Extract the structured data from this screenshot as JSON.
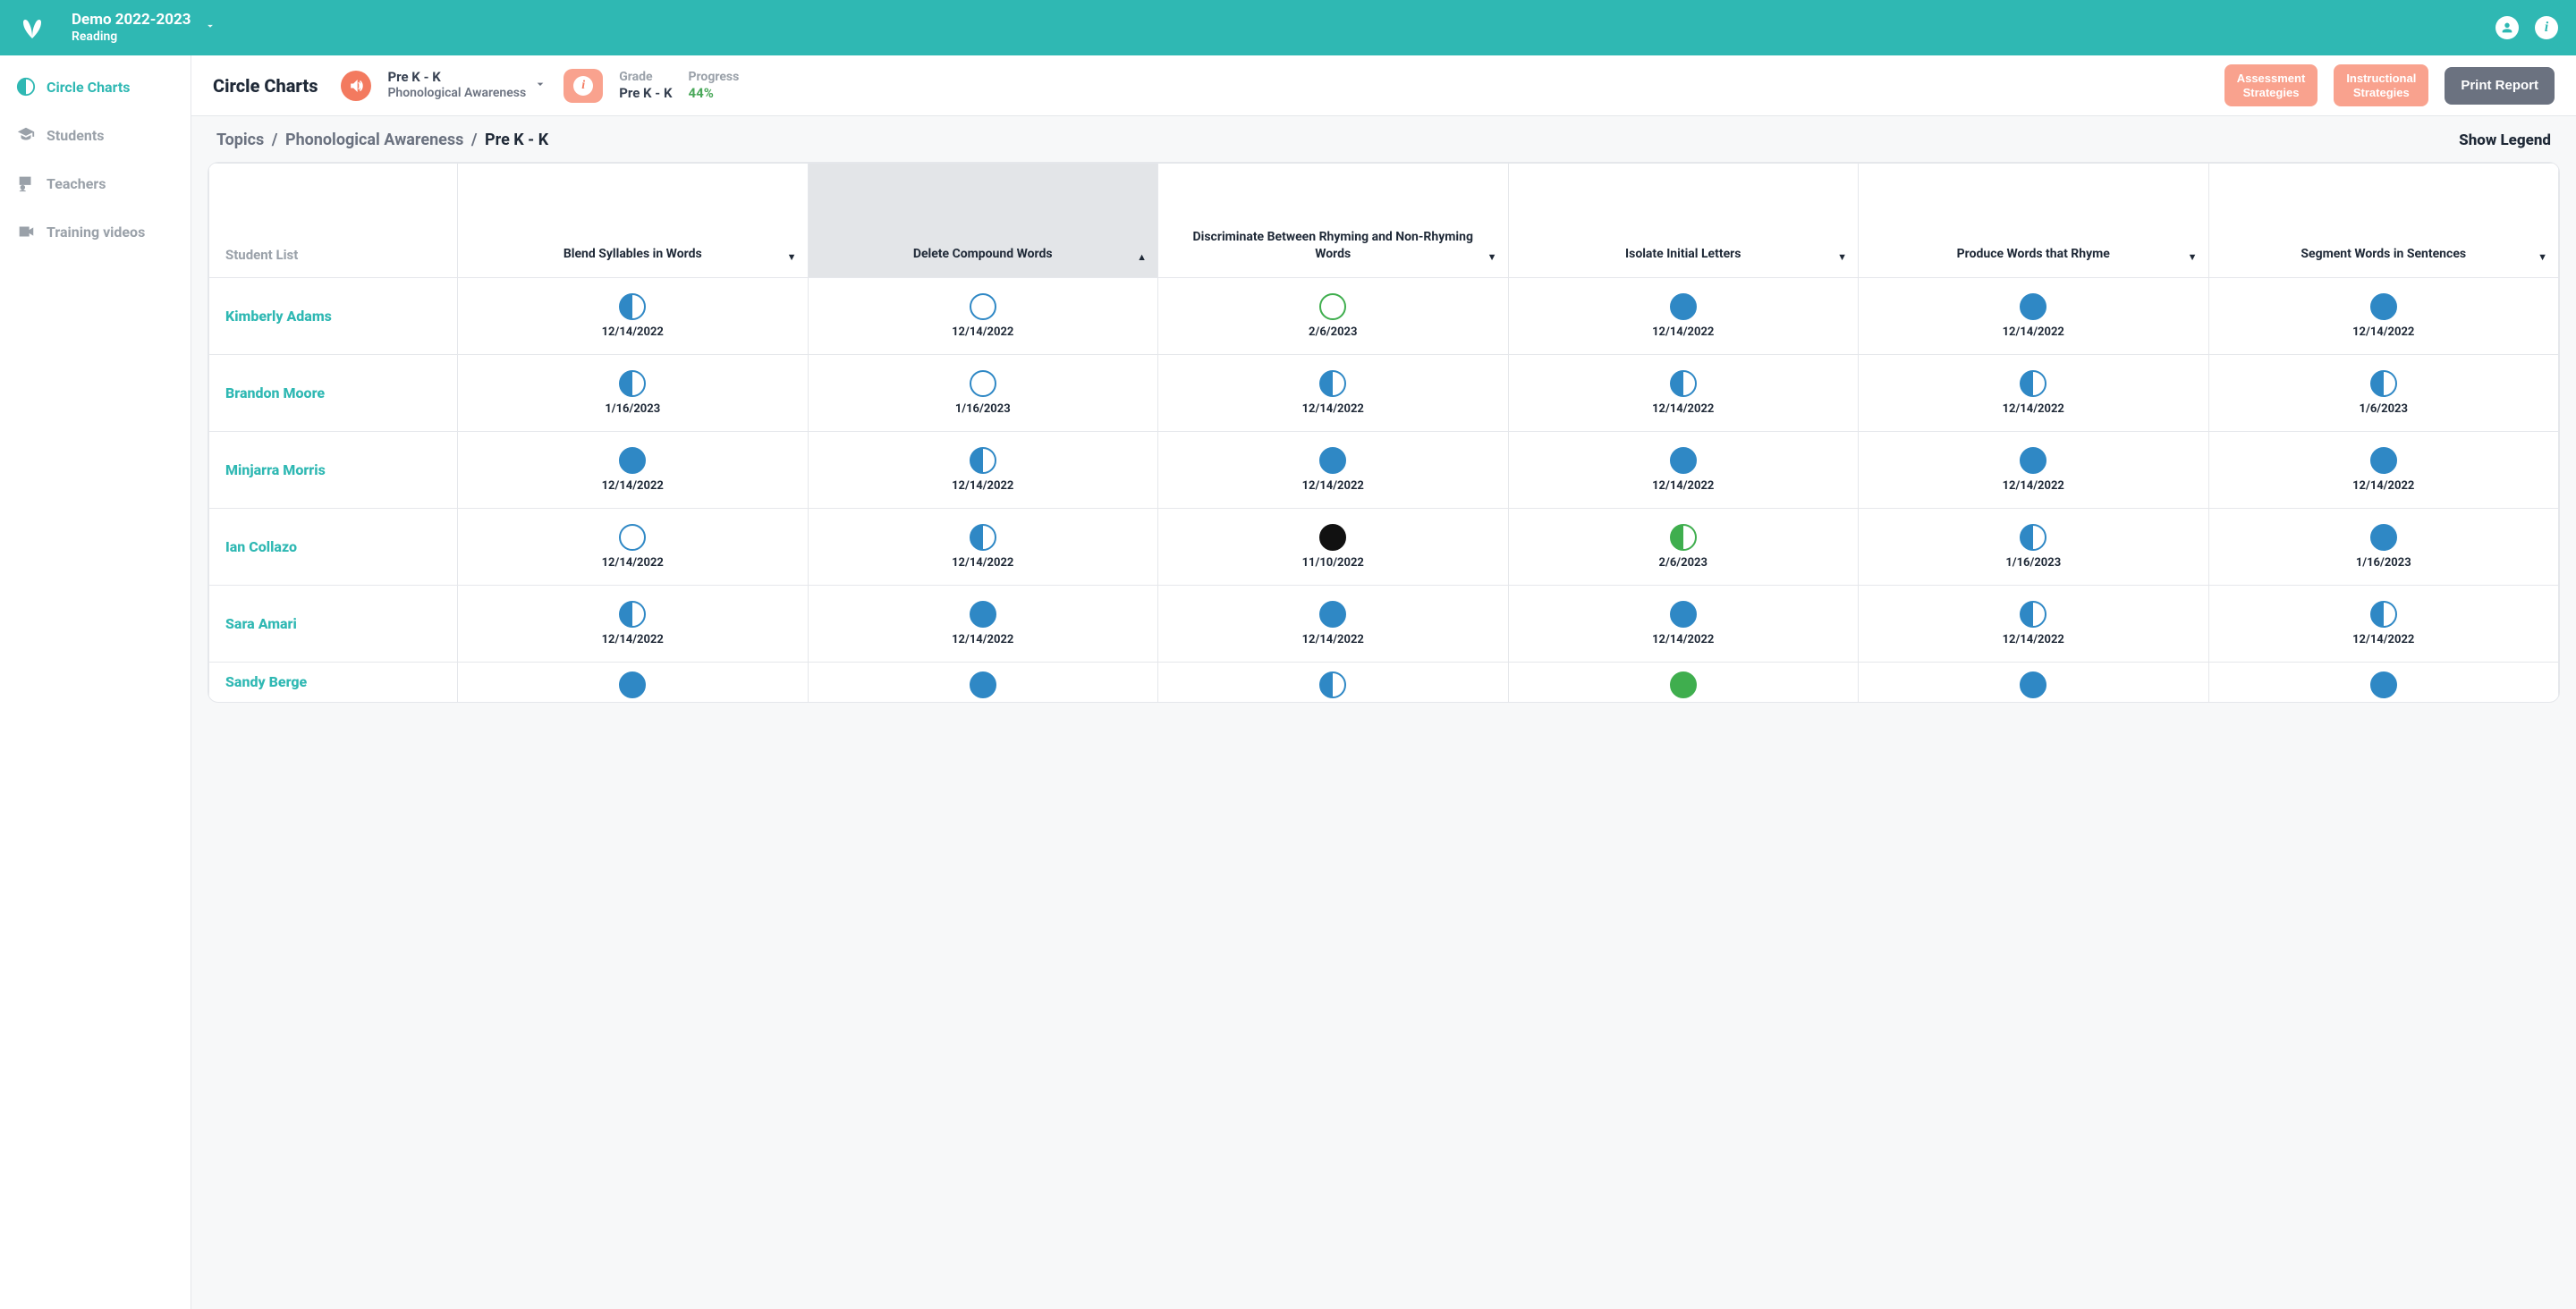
{
  "topbar": {
    "term_title": "Demo 2022-2023",
    "term_subject": "Reading"
  },
  "sidebar": {
    "items": [
      {
        "label": "Circle Charts",
        "name": "sidebar-item-circle-charts",
        "active": true
      },
      {
        "label": "Students",
        "name": "sidebar-item-students",
        "active": false
      },
      {
        "label": "Teachers",
        "name": "sidebar-item-teachers",
        "active": false
      },
      {
        "label": "Training videos",
        "name": "sidebar-item-training-videos",
        "active": false
      }
    ]
  },
  "toolbar": {
    "page_title": "Circle Charts",
    "selector_line1": "Pre K - K",
    "selector_line2": "Phonological Awareness",
    "grade_label": "Grade",
    "grade_value": "Pre K - K",
    "progress_label": "Progress",
    "progress_value": "44%",
    "btn_assessment": "Assessment\nStrategies",
    "btn_instructional": "Instructional\nStrategies",
    "btn_print": "Print Report"
  },
  "breadcrumbs": {
    "a": "Topics",
    "b": "Phonological Awareness",
    "c": "Pre K - K",
    "show_legend": "Show Legend"
  },
  "table": {
    "student_list_header": "Student List",
    "columns": [
      {
        "label": "Blend Syllables in Words",
        "sort": "down"
      },
      {
        "label": "Delete Compound Words",
        "sort": "up",
        "sorted": true
      },
      {
        "label": "Discriminate Between Rhyming and Non-Rhyming Words",
        "sort": "down"
      },
      {
        "label": "Isolate Initial Letters",
        "sort": "down"
      },
      {
        "label": "Produce Words that Rhyme",
        "sort": "down"
      },
      {
        "label": "Segment Words in Sentences",
        "sort": "down"
      }
    ],
    "rows": [
      {
        "name": "Kimberly Adams",
        "cells": [
          {
            "state": "half-blue",
            "date": "12/14/2022"
          },
          {
            "state": "open-blue",
            "date": "12/14/2022"
          },
          {
            "state": "open-green",
            "date": "2/6/2023"
          },
          {
            "state": "full-blue",
            "date": "12/14/2022"
          },
          {
            "state": "full-blue",
            "date": "12/14/2022"
          },
          {
            "state": "full-blue",
            "date": "12/14/2022"
          }
        ]
      },
      {
        "name": "Brandon Moore",
        "cells": [
          {
            "state": "half-blue",
            "date": "1/16/2023"
          },
          {
            "state": "open-blue",
            "date": "1/16/2023"
          },
          {
            "state": "half-blue",
            "date": "12/14/2022"
          },
          {
            "state": "half-blue",
            "date": "12/14/2022"
          },
          {
            "state": "half-blue",
            "date": "12/14/2022"
          },
          {
            "state": "half-blue",
            "date": "1/6/2023"
          }
        ]
      },
      {
        "name": "Minjarra Morris",
        "cells": [
          {
            "state": "full-blue",
            "date": "12/14/2022"
          },
          {
            "state": "half-blue",
            "date": "12/14/2022"
          },
          {
            "state": "full-blue",
            "date": "12/14/2022"
          },
          {
            "state": "full-blue",
            "date": "12/14/2022"
          },
          {
            "state": "full-blue",
            "date": "12/14/2022"
          },
          {
            "state": "full-blue",
            "date": "12/14/2022"
          }
        ]
      },
      {
        "name": "Ian Collazo",
        "cells": [
          {
            "state": "open-blue",
            "date": "12/14/2022"
          },
          {
            "state": "half-blue",
            "date": "12/14/2022"
          },
          {
            "state": "full-black",
            "date": "11/10/2022"
          },
          {
            "state": "half-green",
            "date": "2/6/2023"
          },
          {
            "state": "half-blue",
            "date": "1/16/2023"
          },
          {
            "state": "full-blue",
            "date": "1/16/2023"
          }
        ]
      },
      {
        "name": "Sara Amari",
        "cells": [
          {
            "state": "half-blue",
            "date": "12/14/2022"
          },
          {
            "state": "full-blue",
            "date": "12/14/2022"
          },
          {
            "state": "full-blue",
            "date": "12/14/2022"
          },
          {
            "state": "full-blue",
            "date": "12/14/2022"
          },
          {
            "state": "half-blue",
            "date": "12/14/2022"
          },
          {
            "state": "half-blue",
            "date": "12/14/2022"
          }
        ]
      },
      {
        "name": "Sandy Berge",
        "partial": true,
        "cells": [
          {
            "state": "full-blue"
          },
          {
            "state": "full-blue"
          },
          {
            "state": "half-blue"
          },
          {
            "state": "full-green"
          },
          {
            "state": "full-blue"
          },
          {
            "state": "full-blue"
          }
        ]
      }
    ]
  },
  "colors": {
    "teal": "#2fb8b3",
    "blue": "#2f88c5",
    "green": "#3fae4e",
    "black": "#111111",
    "coral": "#f37a5f",
    "coral_soft": "#f9a28e",
    "grey_text": "#9aa1a9",
    "border": "#e5e7eb",
    "progress_green": "#4aa85a"
  }
}
